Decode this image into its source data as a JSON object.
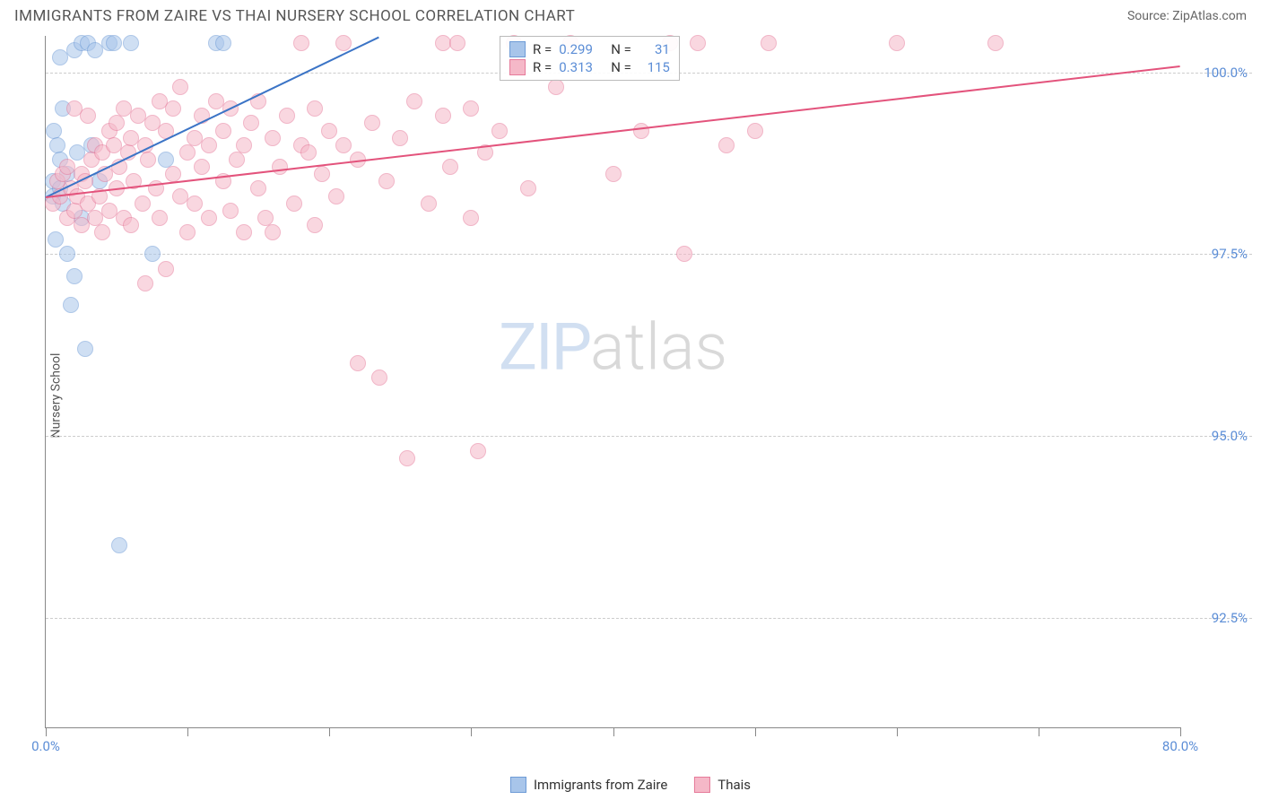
{
  "header": {
    "title": "IMMIGRANTS FROM ZAIRE VS THAI NURSERY SCHOOL CORRELATION CHART",
    "source": "Source: ZipAtlas.com"
  },
  "chart": {
    "type": "scatter",
    "xlabel": "",
    "ylabel": "Nursery School",
    "xlim": [
      0,
      80
    ],
    "ylim": [
      91.0,
      100.5
    ],
    "x_ticks": [
      0,
      10,
      20,
      30,
      40,
      50,
      60,
      70,
      80
    ],
    "x_tick_labels": {
      "0": "0.0%",
      "80": "80.0%"
    },
    "y_gridlines": [
      92.5,
      95.0,
      97.5,
      100.0
    ],
    "y_tick_labels": {
      "92.5": "92.5%",
      "95.0": "95.0%",
      "97.5": "97.5%",
      "100.0": "100.0%"
    },
    "grid_color": "#cccccc",
    "axis_color": "#888888",
    "background_color": "#ffffff",
    "tick_label_color": "#5b8dd6",
    "series": [
      {
        "name": "Immigrants from Zaire",
        "color_fill": "#a8c5ea",
        "color_stroke": "#6d9bd6",
        "R": "0.299",
        "N": "31",
        "trend": {
          "x1": 0,
          "y1": 98.3,
          "x2": 23.5,
          "y2": 100.5,
          "color": "#3b74c6"
        },
        "points": [
          [
            0.5,
            98.3
          ],
          [
            0.5,
            98.5
          ],
          [
            0.6,
            99.2
          ],
          [
            0.7,
            97.7
          ],
          [
            0.8,
            99.0
          ],
          [
            1.0,
            98.4
          ],
          [
            1.0,
            98.8
          ],
          [
            1.0,
            100.2
          ],
          [
            1.2,
            98.2
          ],
          [
            1.2,
            99.5
          ],
          [
            1.5,
            97.5
          ],
          [
            1.5,
            98.6
          ],
          [
            1.8,
            96.8
          ],
          [
            2.0,
            100.3
          ],
          [
            2.0,
            97.2
          ],
          [
            2.2,
            98.9
          ],
          [
            2.5,
            100.4
          ],
          [
            2.5,
            98.0
          ],
          [
            2.8,
            96.2
          ],
          [
            3.0,
            100.4
          ],
          [
            3.2,
            99.0
          ],
          [
            3.5,
            100.3
          ],
          [
            3.8,
            98.5
          ],
          [
            4.5,
            100.4
          ],
          [
            4.8,
            100.4
          ],
          [
            5.2,
            93.5
          ],
          [
            6.0,
            100.4
          ],
          [
            7.5,
            97.5
          ],
          [
            8.5,
            98.8
          ],
          [
            12.0,
            100.4
          ],
          [
            12.5,
            100.4
          ]
        ]
      },
      {
        "name": "Thais",
        "color_fill": "#f5b8c8",
        "color_stroke": "#e67a9a",
        "R": "0.313",
        "N": "115",
        "trend": {
          "x1": 0,
          "y1": 98.3,
          "x2": 80,
          "y2": 100.1,
          "color": "#e3537c"
        },
        "points": [
          [
            0.5,
            98.2
          ],
          [
            0.8,
            98.5
          ],
          [
            1.0,
            98.3
          ],
          [
            1.2,
            98.6
          ],
          [
            1.5,
            98.0
          ],
          [
            1.5,
            98.7
          ],
          [
            1.8,
            98.4
          ],
          [
            2.0,
            98.1
          ],
          [
            2.0,
            99.5
          ],
          [
            2.2,
            98.3
          ],
          [
            2.5,
            98.6
          ],
          [
            2.5,
            97.9
          ],
          [
            2.8,
            98.5
          ],
          [
            3.0,
            99.4
          ],
          [
            3.0,
            98.2
          ],
          [
            3.2,
            98.8
          ],
          [
            3.5,
            98.0
          ],
          [
            3.5,
            99.0
          ],
          [
            3.8,
            98.3
          ],
          [
            4.0,
            98.9
          ],
          [
            4.0,
            97.8
          ],
          [
            4.2,
            98.6
          ],
          [
            4.5,
            99.2
          ],
          [
            4.5,
            98.1
          ],
          [
            4.8,
            99.0
          ],
          [
            5.0,
            98.4
          ],
          [
            5.0,
            99.3
          ],
          [
            5.2,
            98.7
          ],
          [
            5.5,
            99.5
          ],
          [
            5.5,
            98.0
          ],
          [
            5.8,
            98.9
          ],
          [
            6.0,
            99.1
          ],
          [
            6.0,
            97.9
          ],
          [
            6.2,
            98.5
          ],
          [
            6.5,
            99.4
          ],
          [
            6.8,
            98.2
          ],
          [
            7.0,
            99.0
          ],
          [
            7.0,
            97.1
          ],
          [
            7.2,
            98.8
          ],
          [
            7.5,
            99.3
          ],
          [
            7.8,
            98.4
          ],
          [
            8.0,
            99.6
          ],
          [
            8.0,
            98.0
          ],
          [
            8.5,
            97.3
          ],
          [
            8.5,
            99.2
          ],
          [
            9.0,
            98.6
          ],
          [
            9.0,
            99.5
          ],
          [
            9.5,
            98.3
          ],
          [
            9.5,
            99.8
          ],
          [
            10.0,
            98.9
          ],
          [
            10.0,
            97.8
          ],
          [
            10.5,
            99.1
          ],
          [
            10.5,
            98.2
          ],
          [
            11.0,
            99.4
          ],
          [
            11.0,
            98.7
          ],
          [
            11.5,
            99.0
          ],
          [
            11.5,
            98.0
          ],
          [
            12.0,
            99.6
          ],
          [
            12.5,
            98.5
          ],
          [
            12.5,
            99.2
          ],
          [
            13.0,
            98.1
          ],
          [
            13.0,
            99.5
          ],
          [
            13.5,
            98.8
          ],
          [
            14.0,
            99.0
          ],
          [
            14.0,
            97.8
          ],
          [
            14.5,
            99.3
          ],
          [
            15.0,
            98.4
          ],
          [
            15.0,
            99.6
          ],
          [
            15.5,
            98.0
          ],
          [
            16.0,
            99.1
          ],
          [
            16.0,
            97.8
          ],
          [
            16.5,
            98.7
          ],
          [
            17.0,
            99.4
          ],
          [
            17.5,
            98.2
          ],
          [
            18.0,
            99.0
          ],
          [
            18.0,
            100.4
          ],
          [
            18.5,
            98.9
          ],
          [
            19.0,
            99.5
          ],
          [
            19.0,
            97.9
          ],
          [
            19.5,
            98.6
          ],
          [
            20.0,
            99.2
          ],
          [
            20.5,
            98.3
          ],
          [
            21.0,
            99.0
          ],
          [
            21.0,
            100.4
          ],
          [
            22.0,
            98.8
          ],
          [
            22.0,
            96.0
          ],
          [
            23.0,
            99.3
          ],
          [
            23.5,
            95.8
          ],
          [
            24.0,
            98.5
          ],
          [
            25.0,
            99.1
          ],
          [
            25.5,
            94.7
          ],
          [
            26.0,
            99.6
          ],
          [
            27.0,
            98.2
          ],
          [
            28.0,
            99.4
          ],
          [
            28.0,
            100.4
          ],
          [
            28.5,
            98.7
          ],
          [
            29.0,
            100.4
          ],
          [
            30.0,
            98.0
          ],
          [
            30.0,
            99.5
          ],
          [
            30.5,
            94.8
          ],
          [
            31.0,
            98.9
          ],
          [
            32.0,
            99.2
          ],
          [
            33.0,
            100.4
          ],
          [
            34.0,
            98.4
          ],
          [
            36.0,
            99.8
          ],
          [
            37.0,
            100.4
          ],
          [
            40.0,
            98.6
          ],
          [
            42.0,
            99.2
          ],
          [
            44.0,
            100.4
          ],
          [
            45.0,
            97.5
          ],
          [
            46.0,
            100.4
          ],
          [
            48.0,
            99.0
          ],
          [
            50.0,
            99.2
          ],
          [
            51.0,
            100.4
          ],
          [
            60.0,
            100.4
          ],
          [
            67.0,
            100.4
          ]
        ]
      }
    ],
    "bottom_legend": [
      {
        "label": "Immigrants from Zaire",
        "fill": "#a8c5ea",
        "stroke": "#6d9bd6"
      },
      {
        "label": "Thais",
        "fill": "#f5b8c8",
        "stroke": "#e67a9a"
      }
    ],
    "watermark": {
      "part1": "ZIP",
      "part2": "atlas"
    }
  }
}
